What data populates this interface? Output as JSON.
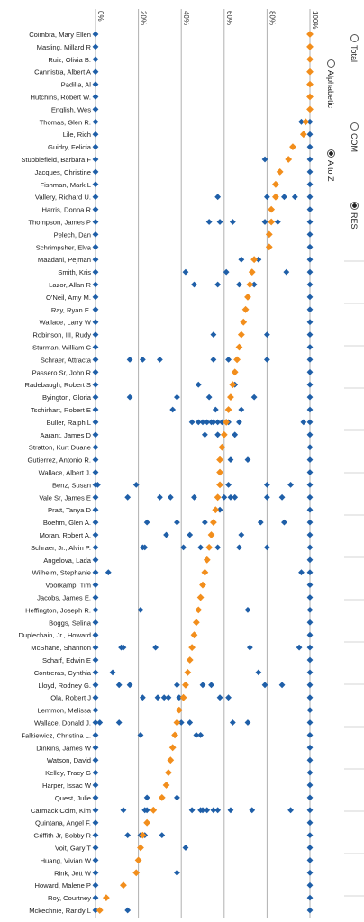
{
  "chart_data": {
    "type": "scatter",
    "orientation": "rotated-90",
    "x_axis": {
      "ticks": [
        "0%",
        "20%",
        "40%",
        "60%",
        "80%",
        "100%"
      ],
      "range": [
        0,
        100
      ]
    },
    "grid": true,
    "series": [
      {
        "color": "#f28e1c",
        "marker": "diamond",
        "role": "total"
      },
      {
        "color": "#1f5fa8",
        "marker": "diamond",
        "role": "individual"
      }
    ],
    "rows": [
      {
        "name": "Coimbra, Mary Ellen",
        "total": 100,
        "points": [
          0,
          100
        ]
      },
      {
        "name": "Masling, Millard R",
        "total": 100,
        "points": [
          0,
          100
        ]
      },
      {
        "name": "Ruiz, Olivia B.",
        "total": 100,
        "points": [
          0,
          100
        ]
      },
      {
        "name": "Cannistra, Albert A",
        "total": 100,
        "points": [
          0,
          100
        ]
      },
      {
        "name": "Padilla, Al",
        "total": 100,
        "points": [
          0,
          100
        ]
      },
      {
        "name": "Hutchins, Robert W.",
        "total": 100,
        "points": [
          0,
          100
        ]
      },
      {
        "name": "English, Wes",
        "total": 100,
        "points": [
          0,
          100
        ]
      },
      {
        "name": "Thomas, Glen R.",
        "total": 98,
        "points": [
          0,
          96,
          100
        ]
      },
      {
        "name": "Lile, Rich",
        "total": 97,
        "points": [
          0,
          100
        ]
      },
      {
        "name": "Guidry, Felicia",
        "total": 92,
        "points": [
          0,
          100
        ]
      },
      {
        "name": "Stubblefield, Barbara F",
        "total": 90,
        "points": [
          0,
          79,
          100
        ]
      },
      {
        "name": "Jacques, Christine",
        "total": 86,
        "points": [
          0,
          100
        ]
      },
      {
        "name": "Fishman, Mark L",
        "total": 84,
        "points": [
          0,
          100
        ]
      },
      {
        "name": "Vallery, Richard U.",
        "total": 84,
        "points": [
          0,
          57,
          80,
          88,
          93,
          100
        ]
      },
      {
        "name": "Harris, Donna R",
        "total": 82,
        "points": [
          0,
          100
        ]
      },
      {
        "name": "Thompson, James P",
        "total": 82,
        "points": [
          0,
          53,
          58,
          64,
          79,
          85,
          100
        ]
      },
      {
        "name": "Pelech, Dan",
        "total": 81,
        "points": [
          0,
          100
        ]
      },
      {
        "name": "Schrimpsher, Elva",
        "total": 81,
        "points": [
          0,
          100
        ]
      },
      {
        "name": "Maadani, Pejman",
        "total": 74,
        "points": [
          0,
          68,
          76,
          100
        ]
      },
      {
        "name": "Smith, Kris",
        "total": 73,
        "points": [
          0,
          42,
          61,
          89,
          100
        ]
      },
      {
        "name": "Lazor, Allan R",
        "total": 72,
        "points": [
          0,
          46,
          57,
          67,
          74,
          100
        ]
      },
      {
        "name": "O'Neil, Amy M.",
        "total": 71,
        "points": [
          0,
          100
        ]
      },
      {
        "name": "Ray, Ryan E.",
        "total": 70,
        "points": [
          0,
          100
        ]
      },
      {
        "name": "Wallace, Larry W",
        "total": 69,
        "points": [
          0,
          100
        ]
      },
      {
        "name": "Robinson, III, Rudy",
        "total": 68,
        "points": [
          0,
          55,
          80,
          100
        ]
      },
      {
        "name": "Sturman, William C",
        "total": 67,
        "points": [
          0,
          100
        ]
      },
      {
        "name": "Schraer, Attracta",
        "total": 66,
        "points": [
          0,
          16,
          22,
          30,
          55,
          62,
          80,
          100
        ]
      },
      {
        "name": "Passero Sr, John R",
        "total": 65,
        "points": [
          0,
          100
        ]
      },
      {
        "name": "Radebaugh, Robert S",
        "total": 64,
        "points": [
          0,
          48,
          65,
          100
        ]
      },
      {
        "name": "Byington, Gloria",
        "total": 63,
        "points": [
          0,
          16,
          38,
          53,
          74,
          100
        ]
      },
      {
        "name": "Tschirhart, Robert E",
        "total": 62,
        "points": [
          0,
          36,
          56,
          68,
          100
        ]
      },
      {
        "name": "Buller, Ralph L",
        "total": 61,
        "points": [
          0,
          45,
          48,
          50,
          52,
          54,
          55,
          57,
          59,
          62,
          67,
          97,
          100
        ]
      },
      {
        "name": "Aarant, James D",
        "total": 60,
        "points": [
          0,
          51,
          57,
          65,
          100
        ]
      },
      {
        "name": "Stratton, Kurt Duane",
        "total": 59,
        "points": [
          0,
          100
        ]
      },
      {
        "name": "Gutierrez, Antonio R.",
        "total": 58,
        "points": [
          0,
          63,
          71,
          100
        ]
      },
      {
        "name": "Wallace, Albert J.",
        "total": 58,
        "points": [
          0,
          100
        ]
      },
      {
        "name": "Benz, Susan",
        "total": 58,
        "points": [
          0,
          1,
          19,
          62,
          80,
          91,
          100
        ]
      },
      {
        "name": "Vale Sr, James E",
        "total": 57,
        "points": [
          0,
          15,
          30,
          35,
          46,
          60,
          63,
          65,
          80,
          87,
          100
        ]
      },
      {
        "name": "Pratt, Tanya D",
        "total": 56,
        "points": [
          0,
          58,
          100
        ]
      },
      {
        "name": "Boehm, Glen A.",
        "total": 55,
        "points": [
          0,
          24,
          38,
          51,
          77,
          88,
          100
        ]
      },
      {
        "name": "Moran, Robert A.",
        "total": 54,
        "points": [
          0,
          33,
          44,
          68,
          100
        ]
      },
      {
        "name": "Schraer, Jr., Alvin P.",
        "total": 53,
        "points": [
          0,
          22,
          23,
          41,
          49,
          57,
          67,
          80,
          100
        ]
      },
      {
        "name": "Angelova, Lada",
        "total": 52,
        "points": [
          0,
          100
        ]
      },
      {
        "name": "Wilhelm, Stephanie",
        "total": 51,
        "points": [
          0,
          6,
          96,
          100
        ]
      },
      {
        "name": "Voorkamp, Tim",
        "total": 50,
        "points": [
          0,
          100
        ]
      },
      {
        "name": "Jacobs, James E.",
        "total": 49,
        "points": [
          0,
          100
        ]
      },
      {
        "name": "Heffington, Joseph R.",
        "total": 48,
        "points": [
          0,
          21,
          71,
          100
        ]
      },
      {
        "name": "Boggs, Selina",
        "total": 47,
        "points": [
          0,
          100
        ]
      },
      {
        "name": "Duplechain, Jr., Howard",
        "total": 46,
        "points": [
          0,
          100
        ]
      },
      {
        "name": "McShane, Shannon",
        "total": 45,
        "points": [
          0,
          12,
          13,
          28,
          72,
          95,
          100
        ]
      },
      {
        "name": "Scharf, Edwin E",
        "total": 44,
        "points": [
          0,
          100
        ]
      },
      {
        "name": "Contreras, Cynthia",
        "total": 43,
        "points": [
          0,
          8,
          76,
          100
        ]
      },
      {
        "name": "Lloyd, Rodney G.",
        "total": 42,
        "points": [
          0,
          11,
          16,
          38,
          50,
          54,
          79,
          87,
          100
        ]
      },
      {
        "name": "Ola, Robert J",
        "total": 41,
        "points": [
          0,
          22,
          29,
          32,
          34,
          39,
          58,
          62,
          100
        ]
      },
      {
        "name": "Lemmon, Melissa",
        "total": 39,
        "points": [
          0,
          100
        ]
      },
      {
        "name": "Wallace, Donald J.",
        "total": 38,
        "points": [
          0,
          2,
          11,
          40,
          44,
          64,
          71,
          100
        ]
      },
      {
        "name": "Falkiewicz, Christina L.",
        "total": 37,
        "points": [
          0,
          21,
          47,
          49,
          100
        ]
      },
      {
        "name": "Dinkins, James W",
        "total": 36,
        "points": [
          0,
          100
        ]
      },
      {
        "name": "Watson, David",
        "total": 35,
        "points": [
          0,
          100
        ]
      },
      {
        "name": "Kelley, Tracy G",
        "total": 34,
        "points": [
          0,
          100
        ]
      },
      {
        "name": "Harper, Issac W",
        "total": 33,
        "points": [
          0,
          100
        ]
      },
      {
        "name": "Quest, Julie",
        "total": 31,
        "points": [
          0,
          24,
          38,
          100
        ]
      },
      {
        "name": "Carmack Ccim, Kim",
        "total": 27,
        "points": [
          0,
          13,
          23,
          24,
          45,
          49,
          50,
          52,
          55,
          57,
          63,
          73,
          91,
          100
        ]
      },
      {
        "name": "Quintana, Angel F.",
        "total": 24,
        "points": [
          0,
          100
        ]
      },
      {
        "name": "Griffith Jr, Bobby R",
        "total": 22,
        "points": [
          0,
          15,
          21,
          23,
          31,
          100
        ]
      },
      {
        "name": "Voit, Gary T",
        "total": 21,
        "points": [
          0,
          42,
          100
        ]
      },
      {
        "name": "Huang, Vivian W",
        "total": 20,
        "points": [
          0,
          100
        ]
      },
      {
        "name": "Rink, Jett W",
        "total": 19,
        "points": [
          0,
          38,
          100
        ]
      },
      {
        "name": "Howard, Malene P",
        "total": 13,
        "points": [
          0,
          100
        ]
      },
      {
        "name": "Roy, Courtney",
        "total": 5,
        "points": [
          0,
          100
        ]
      },
      {
        "name": "Mckechnie, Randy L",
        "total": 2,
        "points": [
          0,
          15,
          100
        ]
      }
    ]
  },
  "controls": [
    {
      "label": "Total",
      "selected": false
    },
    {
      "label": "Alphabetic",
      "selected": false
    },
    {
      "label": "COM",
      "selected": false
    },
    {
      "label": "A to Z",
      "selected": true
    },
    {
      "label": "RES",
      "selected": true
    }
  ]
}
